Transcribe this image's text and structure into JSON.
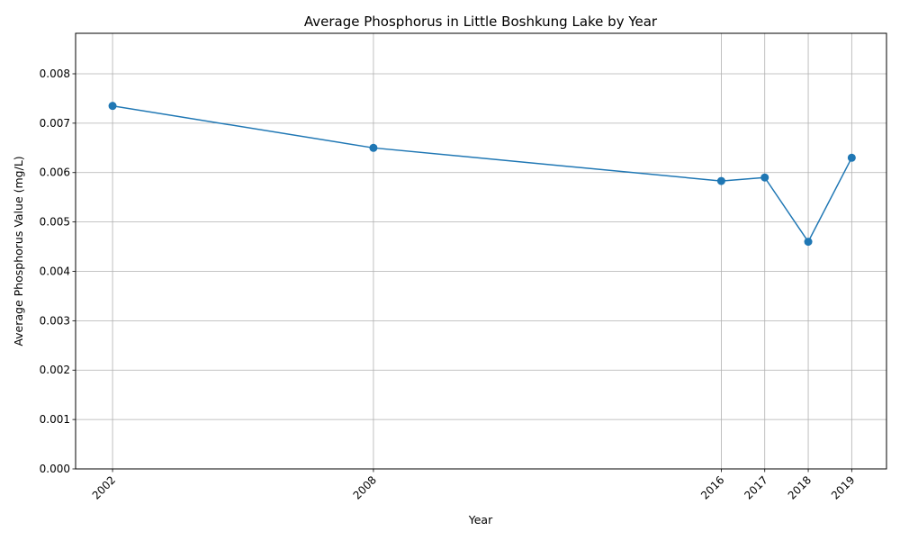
{
  "chart_data": {
    "type": "line",
    "title": "Average Phosphorus in Little Boshkung Lake by Year",
    "xlabel": "Year",
    "ylabel": "Average Phosphorus Value (mg/L)",
    "x": [
      2002,
      2008,
      2016,
      2017,
      2018,
      2019
    ],
    "x_tick_labels": [
      "2002",
      "2008",
      "2016",
      "2017",
      "2018",
      "2019"
    ],
    "y_tick_labels": [
      "0.000",
      "0.001",
      "0.002",
      "0.003",
      "0.004",
      "0.005",
      "0.006",
      "0.007",
      "0.008"
    ],
    "series": [
      {
        "values": [
          0.00735,
          0.0065,
          0.00583,
          0.0059,
          0.0046,
          0.0063
        ]
      }
    ],
    "xlim": [
      2001.15,
      2019.8
    ],
    "ylim": [
      0,
      0.00882
    ],
    "grid": true,
    "line_color": "#1f77b4",
    "marker": "circle"
  }
}
